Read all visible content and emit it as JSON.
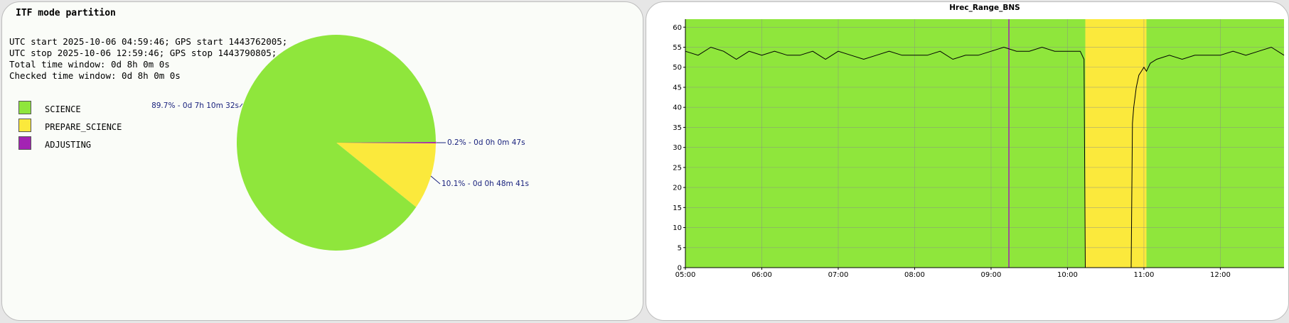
{
  "left_panel": {
    "title": "ITF mode partition",
    "info_lines": [
      "UTC start 2025-10-06 04:59:46; GPS start 1443762005;",
      "UTC stop 2025-10-06 12:59:46; GPS stop 1443790805;",
      "Total time window: 0d 8h 0m 0s",
      "Checked time window: 0d 8h 0m 0s"
    ],
    "legend": [
      {
        "label": "SCIENCE",
        "color": "#8fe63c"
      },
      {
        "label": "PREPARE_SCIENCE",
        "color": "#fbe93c"
      },
      {
        "label": "ADJUSTING",
        "color": "#a323b3"
      }
    ]
  },
  "chart_data": [
    {
      "type": "pie",
      "slices": [
        {
          "name": "SCIENCE",
          "percent": 89.7,
          "color": "#8fe63c",
          "label": "89.7% - 0d 7h 10m 32s"
        },
        {
          "name": "PREPARE_SCIENCE",
          "percent": 10.1,
          "color": "#fbe93c",
          "label": "10.1% - 0d 0h 48m 41s"
        },
        {
          "name": "ADJUSTING",
          "percent": 0.2,
          "color": "#a323b3",
          "label": "0.2% - 0d 0h 0m 47s"
        }
      ],
      "label_color": "#1a237e"
    },
    {
      "type": "line",
      "title": "Hrec_Range_BNS",
      "xlabel": "",
      "ylabel": "",
      "ylim": [
        0,
        62
      ],
      "yticks": [
        0,
        5,
        10,
        15,
        20,
        25,
        30,
        35,
        40,
        45,
        50,
        55,
        60
      ],
      "xlim": [
        "05:00",
        "12:50"
      ],
      "xticks": [
        "05:00",
        "06:00",
        "07:00",
        "08:00",
        "09:00",
        "10:00",
        "11:00",
        "12:00"
      ],
      "grid": true,
      "line_color": "#000000",
      "background_bands": [
        {
          "mode": "SCIENCE",
          "from": "05:00",
          "to": "10:14",
          "color": "#8fe63c"
        },
        {
          "mode": "PREPARE_SCIENCE",
          "from": "10:14",
          "to": "11:02",
          "color": "#fbe93c"
        },
        {
          "mode": "SCIENCE",
          "from": "11:02",
          "to": "12:50",
          "color": "#8fe63c"
        }
      ],
      "markers": [
        {
          "mode": "ADJUSTING",
          "at": "09:14",
          "color": "#a323b3"
        }
      ],
      "series": [
        {
          "x": [
            "05:00",
            "05:10",
            "05:20",
            "05:30",
            "05:40",
            "05:50",
            "06:00",
            "06:10",
            "06:20",
            "06:30",
            "06:40",
            "06:50",
            "07:00",
            "07:10",
            "07:20",
            "07:30",
            "07:40",
            "07:50",
            "08:00",
            "08:10",
            "08:20",
            "08:30",
            "08:40",
            "08:50",
            "09:00",
            "09:10",
            "09:20",
            "09:30",
            "09:40",
            "09:50",
            "10:00",
            "10:10",
            "10:13",
            "10:14",
            "10:50",
            "10:51",
            "10:52",
            "10:54",
            "10:56",
            "10:58",
            "11:00",
            "11:02",
            "11:05",
            "11:10",
            "11:20",
            "11:30",
            "11:40",
            "11:50",
            "12:00",
            "12:10",
            "12:20",
            "12:30",
            "12:40",
            "12:50"
          ],
          "y": [
            54,
            53,
            55,
            54,
            52,
            54,
            53,
            54,
            53,
            53,
            54,
            52,
            54,
            53,
            52,
            53,
            54,
            53,
            53,
            53,
            54,
            52,
            53,
            53,
            54,
            55,
            54,
            54,
            55,
            54,
            54,
            54,
            52,
            0,
            0,
            36,
            40,
            45,
            48,
            49,
            50,
            49,
            51,
            52,
            53,
            52,
            53,
            53,
            53,
            54,
            53,
            54,
            55,
            53
          ]
        }
      ]
    }
  ]
}
